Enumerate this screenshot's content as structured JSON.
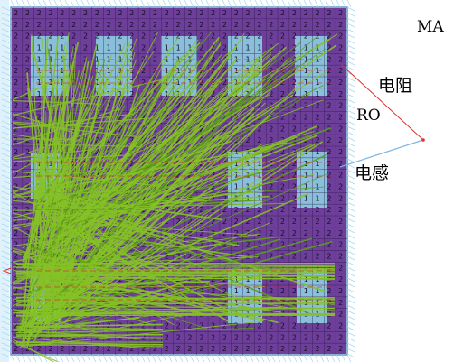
{
  "labels": {
    "ma": "MA",
    "resistor": "电阻",
    "ro": "RO",
    "inductor": "电感"
  },
  "grid": {
    "primary_digit": "2",
    "secondary_digit": "1"
  },
  "colors": {
    "background": "#ffffff",
    "substrate": "#6d3f9a",
    "cell_outline": "#2a1540",
    "pad_fill": "#8fd6e6",
    "wire": "#86c226",
    "wire_dark": "#5f9e1c",
    "net_red": "#e0202c",
    "border_tick": "#a9d9f0",
    "pointer_red": "#e03030",
    "pointer_blue": "#7fb6e6",
    "text": "#000000"
  }
}
